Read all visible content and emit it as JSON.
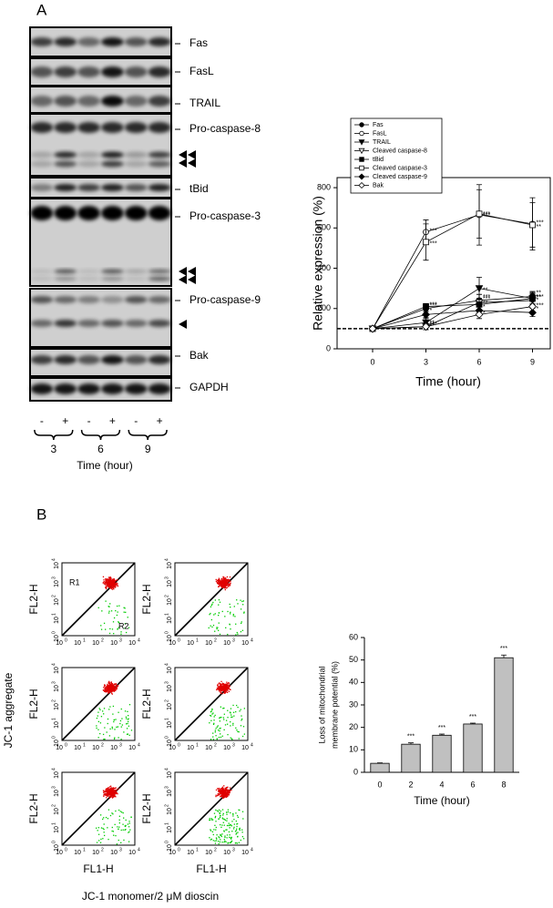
{
  "panels": [
    "A",
    "B"
  ],
  "blot": {
    "labels": [
      "Fas",
      "FasL",
      "TRAIL",
      "Pro-caspase-8",
      "tBid",
      "Pro-caspase-3",
      "Pro-caspase-9",
      "Bak",
      "GAPDH"
    ],
    "lanes": [
      "-",
      "+",
      "-",
      "+",
      "-",
      "+"
    ],
    "times": [
      "3",
      "6",
      "9"
    ],
    "xlabel": "Time (hour)"
  },
  "flow": {
    "tick_base": "10",
    "tick_exps": [
      "0",
      "1",
      "2",
      "3",
      "4"
    ],
    "y_axis": "FL2-H",
    "x_axis": "FL1-H",
    "regions": [
      "R1",
      "R2"
    ],
    "ylabel": "JC-1 aggregate",
    "xlabel": "JC-1 monomer/2 μM dioscin"
  },
  "chart_data": [
    {
      "type": "line",
      "xlabel": "Time (hour)",
      "ylabel": "Relative expression (%)",
      "x": [
        0,
        3,
        6,
        9
      ],
      "xlim": [
        -2,
        10
      ],
      "xticks": [
        0,
        3,
        6,
        9
      ],
      "ylim": [
        0,
        850
      ],
      "yticks": [
        0,
        200,
        400,
        600,
        800
      ],
      "hline": 100,
      "legend": "upper left",
      "color": "#000000",
      "series": [
        {
          "name": "Fas",
          "marker": "circle",
          "filled": true,
          "values": [
            100,
            200,
            240,
            260
          ],
          "errors": [
            0,
            15,
            30,
            25
          ],
          "stars": [
            null,
            "***",
            "***",
            "**"
          ]
        },
        {
          "name": "FasL",
          "marker": "circle",
          "filled": false,
          "values": [
            100,
            580,
            665,
            620
          ],
          "errors": [
            0,
            60,
            150,
            130
          ],
          "stars": [
            null,
            "***",
            "***",
            "***"
          ]
        },
        {
          "name": "TRAIL",
          "marker": "triangle-down",
          "filled": true,
          "values": [
            100,
            130,
            300,
            250
          ],
          "errors": [
            0,
            20,
            55,
            30
          ],
          "stars": [
            null,
            "***",
            "**",
            "*"
          ]
        },
        {
          "name": "Cleaved caspase-8",
          "marker": "triangle-down",
          "filled": false,
          "values": [
            100,
            110,
            230,
            240
          ],
          "errors": [
            0,
            15,
            40,
            30
          ],
          "stars": [
            null,
            "**",
            "***",
            "***"
          ]
        },
        {
          "name": "tBid",
          "marker": "square",
          "filled": true,
          "values": [
            100,
            210,
            220,
            250
          ],
          "errors": [
            0,
            15,
            30,
            25
          ],
          "stars": [
            null,
            "***",
            "**",
            "**"
          ]
        },
        {
          "name": "Cleaved caspase-3",
          "marker": "square",
          "filled": false,
          "values": [
            100,
            530,
            670,
            615
          ],
          "errors": [
            0,
            90,
            120,
            110
          ],
          "stars": [
            null,
            "***",
            "***",
            "**"
          ]
        },
        {
          "name": "Cleaved caspase-9",
          "marker": "diamond",
          "filled": true,
          "values": [
            100,
            170,
            190,
            180
          ],
          "errors": [
            0,
            15,
            25,
            20
          ],
          "stars": [
            null,
            "*",
            "*",
            "*"
          ]
        },
        {
          "name": "Bak",
          "marker": "diamond",
          "filled": false,
          "values": [
            100,
            110,
            170,
            210
          ],
          "errors": [
            0,
            15,
            20,
            25
          ],
          "stars": [
            null,
            "**",
            "*",
            "***"
          ]
        }
      ]
    },
    {
      "type": "bar",
      "xlabel": "Time (hour)",
      "ylabel": [
        "Loss of mitochondrial",
        "membrane potential (%)"
      ],
      "categories": [
        "0",
        "2",
        "4",
        "6",
        "8"
      ],
      "values": [
        4,
        12.5,
        16.5,
        21.5,
        51
      ],
      "errors": [
        0.2,
        0.6,
        0.5,
        0.4,
        1.2
      ],
      "stars": [
        null,
        "***",
        "***",
        "***",
        "***"
      ],
      "color": "#c0c0c0",
      "ylim": [
        0,
        60
      ],
      "yticks": [
        0,
        10,
        20,
        30,
        40,
        50,
        60
      ]
    }
  ]
}
